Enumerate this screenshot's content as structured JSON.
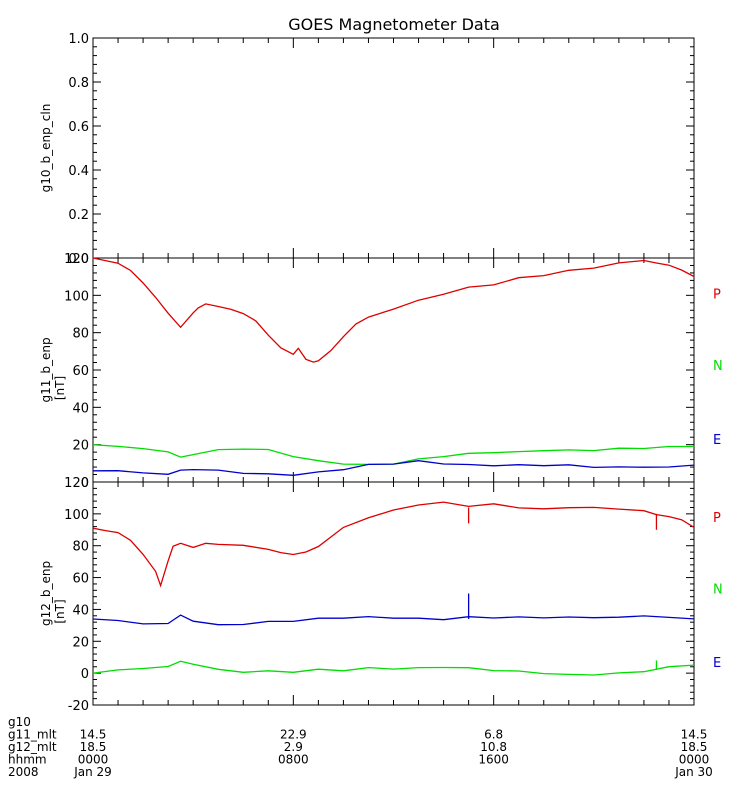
{
  "chart_data": [
    {
      "type": "line",
      "title": "GOES Magnetometer Data",
      "ylabel": "g10_b_enp_cln",
      "unit": "",
      "ylim": [
        0,
        1.0
      ],
      "yticks": [
        "0.0",
        "0.2",
        "0.4",
        "0.6",
        "0.8",
        "1.0"
      ],
      "series": []
    },
    {
      "type": "line",
      "ylabel": "g11_b_enp",
      "unit": "[nT]",
      "ylim": [
        0,
        120
      ],
      "yticks": [
        "0",
        "20",
        "40",
        "60",
        "80",
        "100",
        "120"
      ],
      "x_range_hours": [
        0,
        24
      ],
      "series": [
        {
          "name": "P",
          "color": "#dd0000",
          "x": [
            0,
            0.5,
            1,
            1.5,
            2,
            2.5,
            3,
            3.5,
            4,
            4.2,
            4.5,
            5,
            5.5,
            6,
            6.5,
            7,
            7.5,
            8,
            8.2,
            8.5,
            8.8,
            9,
            9.5,
            10,
            10.5,
            11,
            12,
            13,
            14,
            15,
            16,
            17,
            18,
            19,
            20,
            21,
            22,
            22.5,
            23,
            23.5,
            24
          ],
          "y": [
            120,
            119,
            117,
            113,
            107,
            99,
            90,
            83,
            91,
            93,
            95,
            94,
            93,
            90,
            86,
            79,
            72,
            68,
            72,
            66,
            64,
            65,
            70,
            78,
            85,
            88,
            93,
            97,
            101,
            104,
            106,
            109,
            111,
            113,
            115,
            117,
            119,
            117,
            116,
            114,
            110
          ]
        },
        {
          "name": "N",
          "color": "#00dd00",
          "x": [
            0,
            1,
            2,
            3,
            3.5,
            4,
            5,
            6,
            7,
            8,
            9,
            10,
            11,
            12,
            13,
            14,
            15,
            16,
            17,
            18,
            19,
            20,
            21,
            22,
            23,
            24
          ],
          "y": [
            20,
            19,
            18,
            16,
            13,
            15,
            17,
            18,
            17,
            14,
            11,
            10,
            9,
            10,
            12,
            14,
            15,
            16,
            16,
            17,
            17,
            17,
            18,
            18,
            19,
            19
          ]
        },
        {
          "name": "E",
          "color": "#0000cc",
          "x": [
            0,
            1,
            2,
            3,
            3.5,
            4,
            5,
            6,
            7,
            8,
            9,
            10,
            11,
            12,
            13,
            14,
            15,
            16,
            17,
            18,
            19,
            20,
            21,
            22,
            23,
            24
          ],
          "y": [
            6,
            6,
            5,
            4,
            6,
            7,
            6,
            5,
            4,
            4,
            5,
            7,
            9,
            10,
            11,
            10,
            9,
            9,
            9,
            9,
            9,
            8,
            8,
            8,
            8,
            9
          ]
        }
      ]
    },
    {
      "type": "line",
      "ylabel": "g12_b_enp",
      "unit": "[nT]",
      "ylim": [
        -20,
        120
      ],
      "yticks": [
        "-20",
        "0",
        "20",
        "40",
        "60",
        "80",
        "100",
        "120"
      ],
      "x_range_hours": [
        0,
        24
      ],
      "series": [
        {
          "name": "P",
          "color": "#dd0000",
          "x": [
            0,
            0.5,
            1,
            1.5,
            2,
            2.5,
            2.7,
            3,
            3.2,
            3.5,
            4,
            4.5,
            5,
            6,
            7,
            7.5,
            8,
            8.5,
            9,
            10,
            11,
            12,
            13,
            14,
            15,
            16,
            17,
            18,
            19,
            20,
            21,
            22,
            22.5,
            23,
            23.5,
            24
          ],
          "y": [
            91,
            90,
            88,
            83,
            75,
            64,
            55,
            70,
            80,
            82,
            79,
            81,
            81,
            80,
            78,
            76,
            74,
            76,
            80,
            91,
            98,
            102,
            106,
            107,
            105,
            106,
            104,
            103,
            104,
            104,
            103,
            102,
            100,
            98,
            96,
            92
          ]
        },
        {
          "name": "N",
          "color": "#00dd00",
          "x": [
            0,
            1,
            2,
            3,
            3.5,
            4,
            5,
            6,
            7,
            8,
            9,
            10,
            11,
            12,
            13,
            14,
            15,
            16,
            17,
            18,
            19,
            20,
            21,
            22,
            23,
            24
          ],
          "y": [
            0,
            2,
            3,
            4,
            7,
            6,
            2,
            1,
            1,
            1,
            2,
            2,
            3,
            3,
            3,
            4,
            3,
            2,
            1,
            0,
            -1,
            -1,
            0,
            1,
            4,
            5
          ]
        },
        {
          "name": "E",
          "color": "#0000cc",
          "x": [
            0,
            1,
            2,
            3,
            3.5,
            4,
            5,
            6,
            7,
            8,
            9,
            10,
            11,
            12,
            13,
            14,
            15,
            16,
            17,
            18,
            19,
            20,
            21,
            22,
            23,
            24
          ],
          "y": [
            34,
            33,
            31,
            31,
            36,
            33,
            30,
            31,
            32,
            33,
            34,
            35,
            35,
            35,
            34,
            34,
            35,
            35,
            35,
            35,
            35,
            35,
            35,
            36,
            35,
            34
          ]
        }
      ],
      "spikes": [
        {
          "series": "E",
          "x": 15.0,
          "from": 34,
          "to": 50
        },
        {
          "series": "P",
          "x": 15.0,
          "from": 104,
          "to": 94
        },
        {
          "series": "P",
          "x": 22.5,
          "from": 100,
          "to": 90
        },
        {
          "series": "N",
          "x": 22.5,
          "from": 2,
          "to": 8
        }
      ]
    }
  ],
  "x_axis": {
    "rows": [
      {
        "label": "g10",
        "values": [
          "",
          "",
          "",
          ""
        ]
      },
      {
        "label": "g11_mlt",
        "values": [
          "14.5",
          "22.9",
          "6.8",
          "14.5"
        ]
      },
      {
        "label": "g12_mlt",
        "values": [
          "18.5",
          "2.9",
          "10.8",
          "18.5"
        ]
      },
      {
        "label": "hhmm",
        "values": [
          "0000",
          "0800",
          "1600",
          "0000"
        ]
      },
      {
        "label": "2008",
        "values": [
          "Jan 29",
          "",
          "",
          "Jan 30"
        ]
      }
    ],
    "hours": [
      0,
      8,
      16,
      24
    ]
  },
  "legend": {
    "p": "P",
    "n": "N",
    "e": "E"
  }
}
